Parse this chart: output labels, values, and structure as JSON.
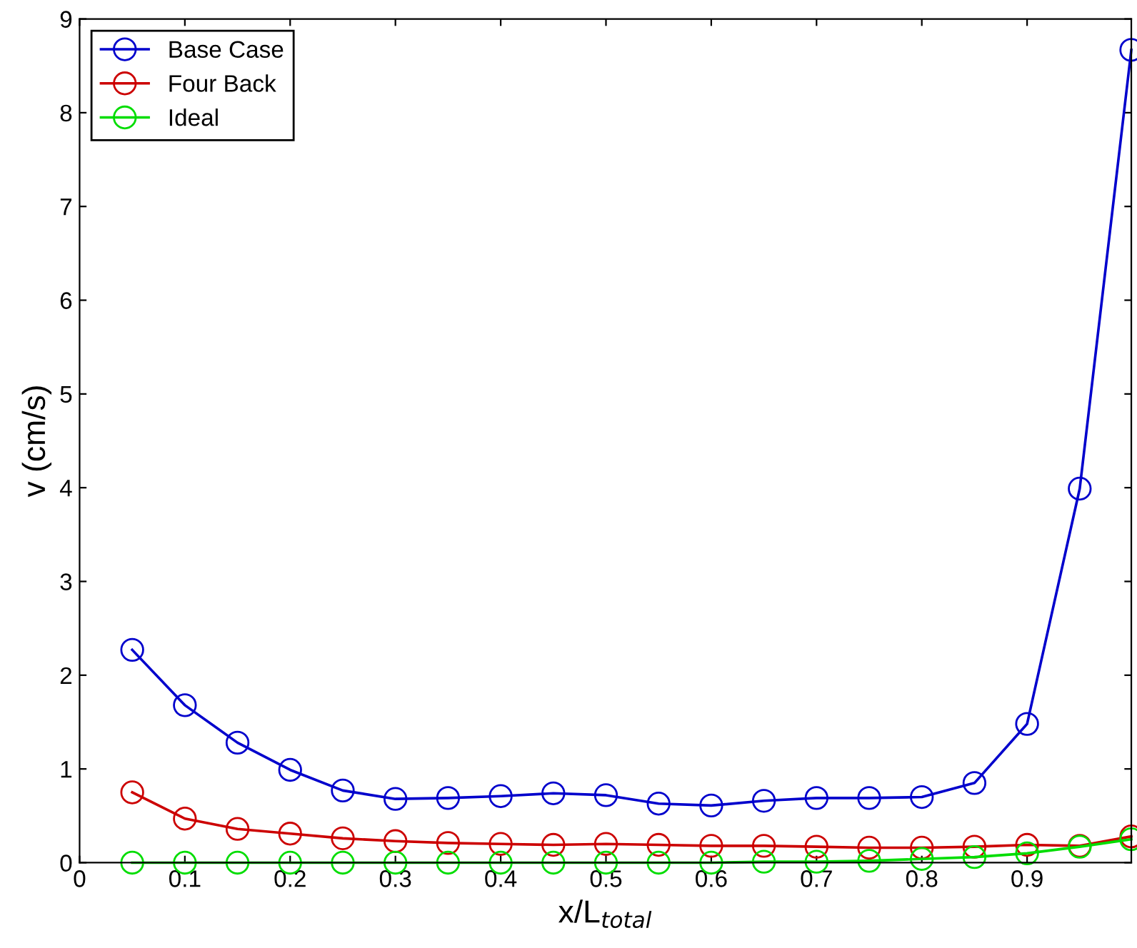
{
  "chart_data": {
    "type": "line",
    "xlabel": "x/L$_{total}$",
    "ylabel": "v (cm/s)",
    "x": [
      0.05,
      0.1,
      0.15,
      0.2,
      0.25,
      0.3,
      0.35,
      0.4,
      0.45,
      0.5,
      0.55,
      0.6,
      0.65,
      0.7,
      0.75,
      0.8,
      0.85,
      0.9,
      0.95,
      0.999
    ],
    "series": [
      {
        "name": "Base Case",
        "color": "#0000cc",
        "values": [
          2.27,
          1.68,
          1.28,
          0.99,
          0.77,
          0.68,
          0.69,
          0.71,
          0.74,
          0.72,
          0.63,
          0.61,
          0.66,
          0.69,
          0.69,
          0.7,
          0.85,
          1.48,
          3.99,
          8.67
        ]
      },
      {
        "name": "Four Back",
        "color": "#cc0000",
        "values": [
          0.75,
          0.47,
          0.36,
          0.31,
          0.26,
          0.23,
          0.21,
          0.2,
          0.19,
          0.2,
          0.19,
          0.18,
          0.18,
          0.17,
          0.16,
          0.16,
          0.17,
          0.19,
          0.18,
          0.28
        ]
      },
      {
        "name": "Ideal",
        "color": "#00dd00",
        "values": [
          0,
          0,
          0,
          0,
          0,
          0,
          0,
          0,
          0,
          0,
          0,
          0,
          0.01,
          0.01,
          0.02,
          0.04,
          0.06,
          0.1,
          0.17,
          0.25
        ]
      }
    ],
    "xlim": [
      0,
      0.999
    ],
    "xticks": [
      0,
      0.1,
      0.2,
      0.3,
      0.4,
      0.5,
      0.6,
      0.7,
      0.8,
      0.9
    ],
    "ylim": [
      0,
      9
    ],
    "yticks": [
      0,
      1,
      2,
      3,
      4,
      5,
      6,
      7,
      8,
      9
    ],
    "marker": "circle",
    "line_style": "solid",
    "legend": "top left",
    "grid": false
  }
}
